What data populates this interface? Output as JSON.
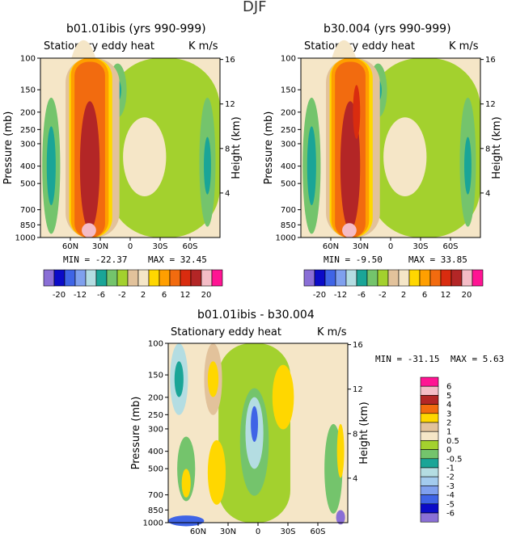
{
  "figure_title": "DJF",
  "panels": [
    {
      "title": "b01.01ibis (yrs 990-999)",
      "left_label": "Stationary eddy heat",
      "right_label": "K m/s",
      "min_text": "MIN = -22.37",
      "max_text": "MAX =  32.45"
    },
    {
      "title": "b30.004 (yrs 990-999)",
      "left_label": "Stationary eddy heat",
      "right_label": "K m/s",
      "min_text": "MIN =  -9.50",
      "max_text": "MAX =  33.85"
    },
    {
      "title": "b01.01ibis - b30.004",
      "left_label": "Stationary eddy heat",
      "right_label": "K m/s",
      "min_text": "MIN = -31.15",
      "max_text": "MAX =    5.63"
    }
  ],
  "axes": {
    "ylabel": "Pressure (mb)",
    "y2label": "Height (km)",
    "pressure_ticks": [
      "100",
      "150",
      "200",
      "250",
      "300",
      "400",
      "500",
      "700",
      "850",
      "1000"
    ],
    "height_ticks": [
      "16",
      "12",
      "8",
      "4"
    ],
    "lat_ticks": [
      "60N",
      "30N",
      "0",
      "30S",
      "60S"
    ]
  },
  "colors": {
    "palette_small": [
      "#8a6fd6",
      "#0b0bc8",
      "#3f64e6",
      "#7fa0ee",
      "#b4dde2",
      "#1aa597",
      "#74c46c",
      "#a3d12e",
      "#e2c29b",
      "#f5e6c7",
      "#ffd700",
      "#ff9f00",
      "#f26b0f",
      "#d92c0f",
      "#b32626",
      "#f4bcc6",
      "#ff1493"
    ],
    "palette_diff": [
      "#8a6fd6",
      "#0b0bc8",
      "#3f64e6",
      "#7fa0ee",
      "#a3cbee",
      "#b4dde2",
      "#1aa597",
      "#74c46c",
      "#a3d12e",
      "#f5e6c7",
      "#e2c29b",
      "#ffd700",
      "#f26b0f",
      "#b32626",
      "#f4bcc6",
      "#ff1493"
    ]
  },
  "chart_data": [
    {
      "type": "heatmap",
      "title": "b01.01ibis (yrs 990-999)",
      "xlabel": "",
      "ylabel": "Pressure (mb)",
      "y2label": "Height (km)",
      "units": "K m/s",
      "min": -22.37,
      "max": 32.45,
      "colorbar_labels": [
        "-20",
        "-12",
        "-6",
        "-2",
        "2",
        "6",
        "12",
        "20"
      ]
    },
    {
      "type": "heatmap",
      "title": "b30.004 (yrs 990-999)",
      "xlabel": "",
      "ylabel": "Pressure (mb)",
      "y2label": "Height (km)",
      "units": "K m/s",
      "min": -9.5,
      "max": 33.85,
      "colorbar_labels": [
        "-20",
        "-12",
        "-6",
        "-2",
        "2",
        "6",
        "12",
        "20"
      ]
    },
    {
      "type": "heatmap",
      "title": "b01.01ibis - b30.004",
      "xlabel": "",
      "ylabel": "Pressure (mb)",
      "y2label": "Height (km)",
      "units": "K m/s",
      "min": -31.15,
      "max": 5.63,
      "colorbar_labels": [
        "6",
        "5",
        "4",
        "3",
        "2",
        "1",
        "0.5",
        "0",
        "-0.5",
        "-1",
        "-2",
        "-3",
        "-4",
        "-5",
        "-6"
      ]
    }
  ]
}
